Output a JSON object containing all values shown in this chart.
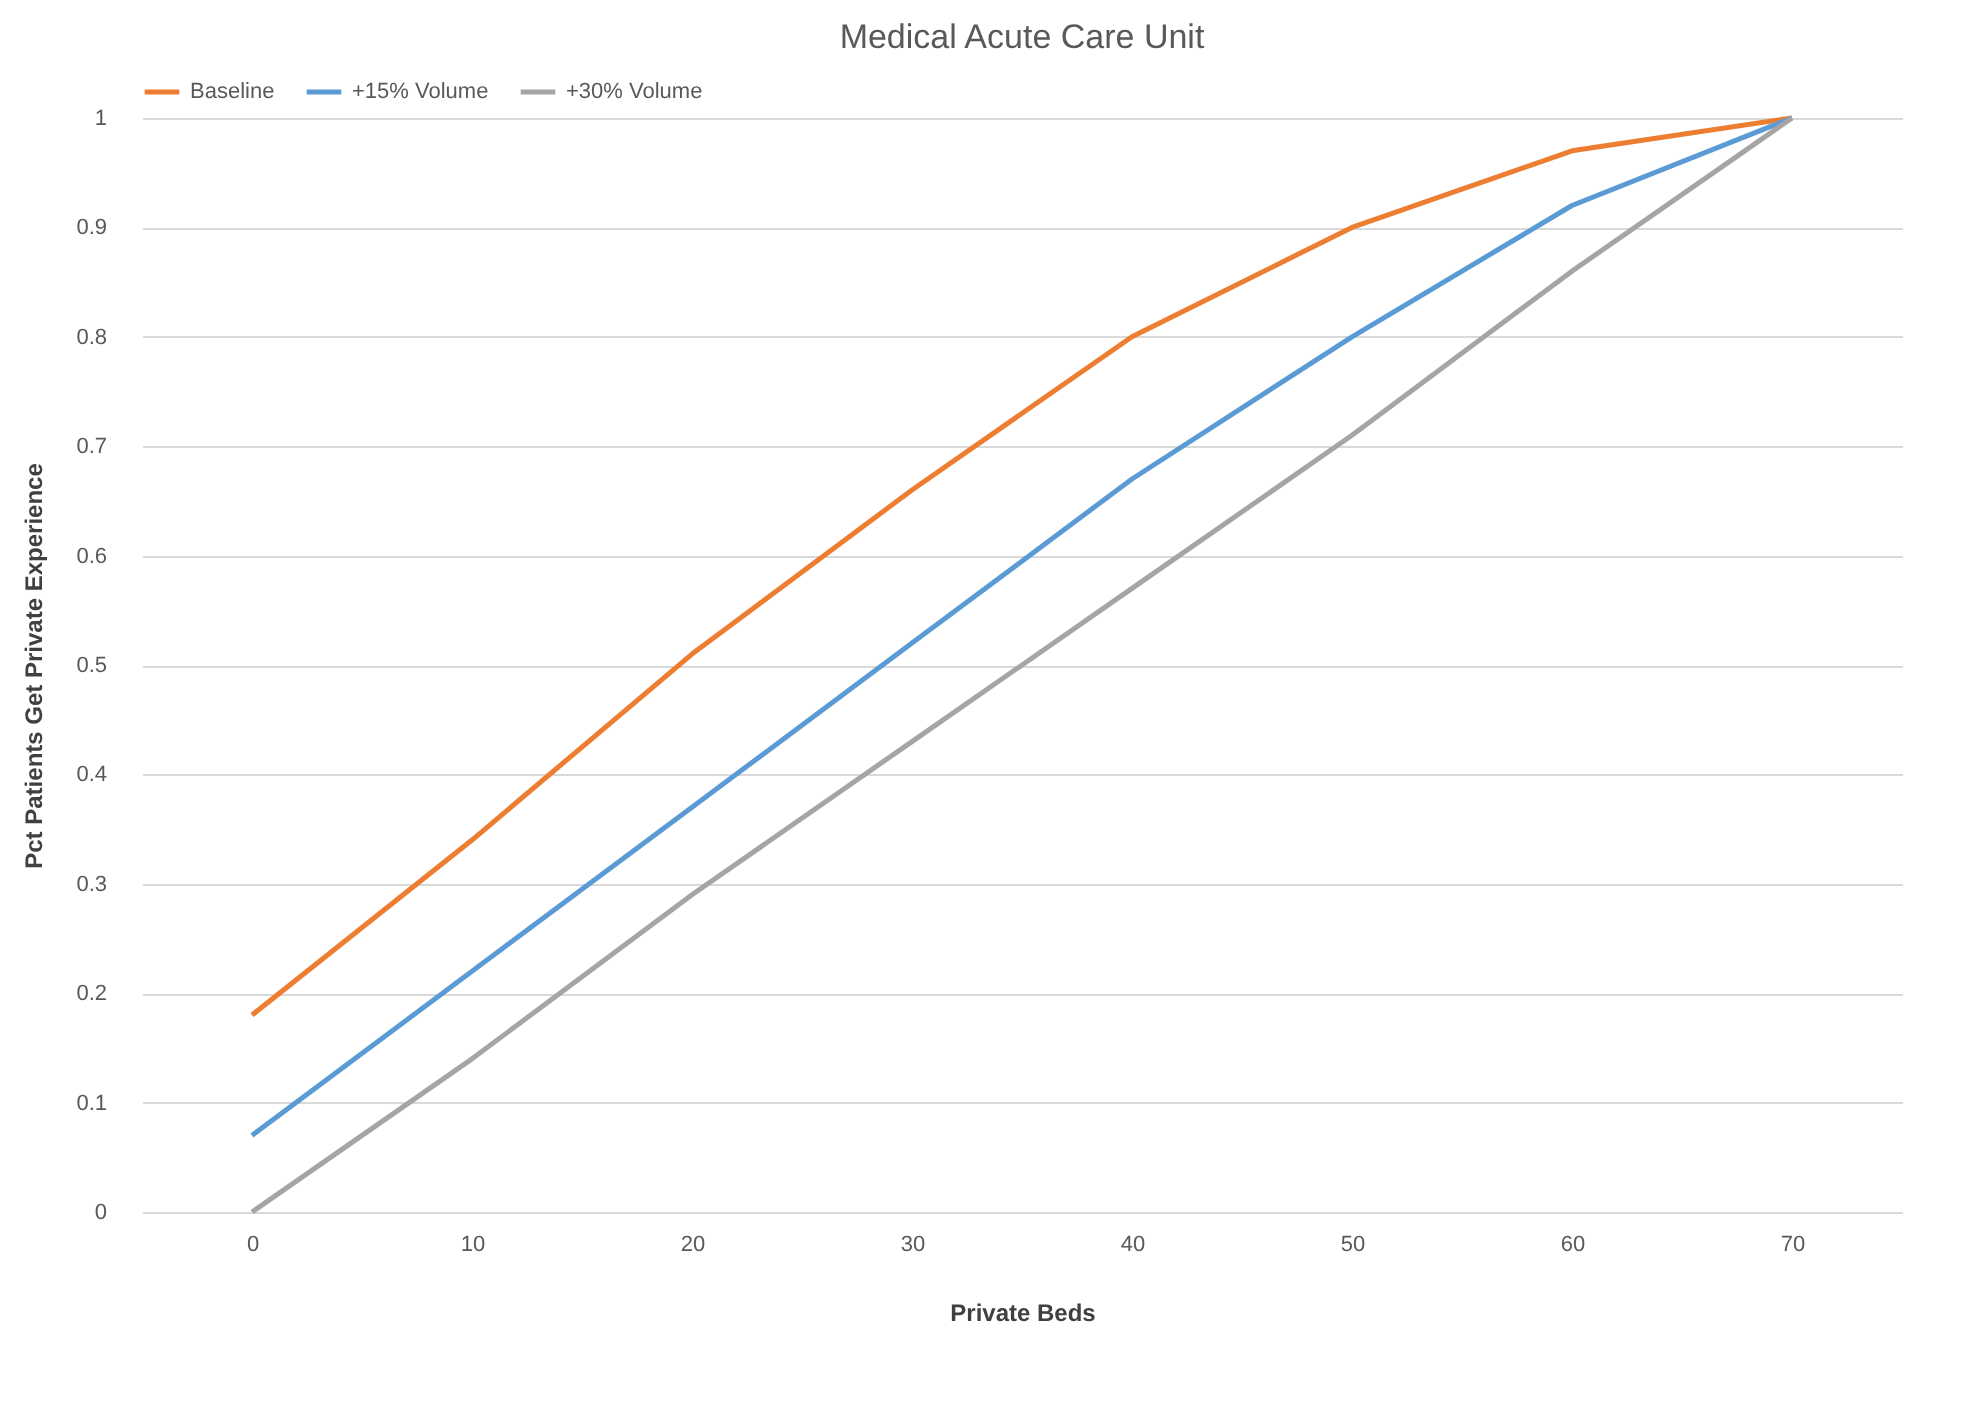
{
  "chart_data": {
    "type": "line",
    "title": "Medical Acute Care Unit",
    "xlabel": "Private Beds",
    "ylabel": "Pct Patients Get Private Experience",
    "categories": [
      "0",
      "10",
      "20",
      "30",
      "40",
      "50",
      "60",
      "70"
    ],
    "series": [
      {
        "name": "Baseline",
        "color": "#ed7d31",
        "values": [
          0.18,
          0.34,
          0.51,
          0.66,
          0.8,
          0.9,
          0.97,
          1.0
        ]
      },
      {
        "name": "+15% Volume",
        "color": "#5b9bd5",
        "values": [
          0.07,
          0.22,
          0.37,
          0.52,
          0.67,
          0.8,
          0.92,
          1.0
        ]
      },
      {
        "name": "+30% Volume",
        "color": "#a5a5a5",
        "values": [
          0,
          0.14,
          0.29,
          0.43,
          0.57,
          0.71,
          0.86,
          1.0
        ]
      }
    ],
    "ylim": [
      0,
      1
    ],
    "yticks": [
      0,
      0.1,
      0.2,
      0.3,
      0.4,
      0.5,
      0.6,
      0.7,
      0.8,
      0.9,
      1
    ],
    "grid": "y",
    "legend": "top",
    "marker": "none",
    "line_style": "solid"
  }
}
